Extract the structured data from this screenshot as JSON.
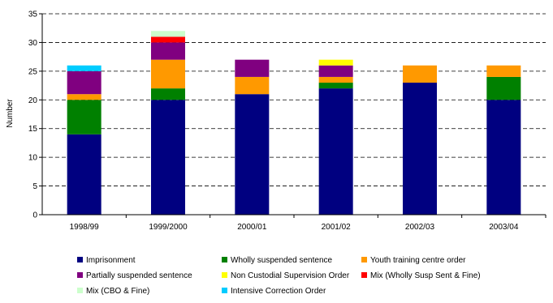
{
  "chart_data": {
    "type": "bar",
    "stacked": true,
    "title": "",
    "xlabel": "",
    "ylabel": "Number",
    "ylim": [
      0,
      35
    ],
    "yticks": [
      0,
      5,
      10,
      15,
      20,
      25,
      30,
      35
    ],
    "grid": "horizontal dashed",
    "legend_position": "bottom",
    "categories": [
      "1998/99",
      "1999/2000",
      "2000/01",
      "2001/02",
      "2002/03",
      "2003/04"
    ],
    "series": [
      {
        "name": "Imprisonment",
        "color": "#000080",
        "values": [
          14,
          20,
          21,
          22,
          23,
          20
        ]
      },
      {
        "name": "Wholly suspended sentence",
        "color": "#008000",
        "values": [
          6,
          2,
          0,
          1,
          0,
          4
        ]
      },
      {
        "name": "Youth training centre order",
        "color": "#FF9900",
        "values": [
          1,
          5,
          3,
          1,
          3,
          2
        ]
      },
      {
        "name": "Partially suspended sentence",
        "color": "#800080",
        "values": [
          4,
          3,
          3,
          2,
          0,
          0
        ]
      },
      {
        "name": "Non Custodial Supervision Order",
        "color": "#FFFF00",
        "values": [
          0,
          0,
          0,
          1,
          0,
          0
        ]
      },
      {
        "name": "Mix (Wholly Susp Sent & Fine)",
        "color": "#FF0000",
        "values": [
          0,
          1,
          0,
          0,
          0,
          0
        ]
      },
      {
        "name": "Mix (CBO & Fine)",
        "color": "#CCFFCC",
        "values": [
          0,
          1,
          0,
          0,
          0,
          0
        ]
      },
      {
        "name": "Intensive Correction Order",
        "color": "#00CCFF",
        "values": [
          1,
          0,
          0,
          0,
          0,
          0
        ]
      }
    ]
  }
}
